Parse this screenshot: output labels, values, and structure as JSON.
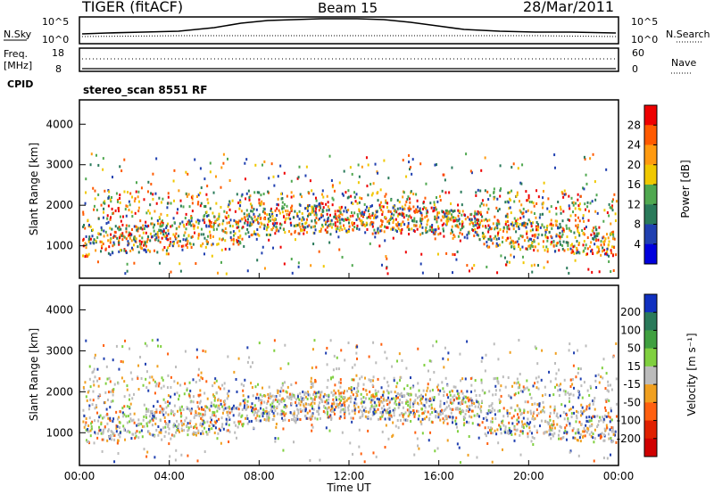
{
  "header": {
    "title": "TIGER (fitACF)",
    "beam": "Beam 15",
    "date": "28/Mar/2011"
  },
  "noise_panel": {
    "left_label": "N.Sky",
    "right_label": "N.Search",
    "left_ticks": [
      "10^5",
      "10^0"
    ],
    "right_ticks": [
      "10^5",
      "10^0"
    ]
  },
  "freq_panel": {
    "left_label_1": "Freq.",
    "left_label_2": "[MHz]",
    "left_ticks": [
      "18",
      "8"
    ],
    "right_label": "Nave",
    "right_ticks": [
      "60",
      "0"
    ]
  },
  "cpid": {
    "label": "CPID",
    "value": "stereo_scan 8551 RF"
  },
  "chart_data": [
    {
      "type": "heatmap",
      "name": "power",
      "ylabel": "Slant Range [km]",
      "ylim": [
        200,
        4600
      ],
      "yticks": [
        "1000",
        "2000",
        "3000",
        "4000"
      ],
      "colorbar_label": "Power [dB]",
      "colorbar_ticks": [
        "28",
        "24",
        "20",
        "16",
        "12",
        "8",
        "4"
      ],
      "colorbar_colors": [
        "#ee0000",
        "#ff5a00",
        "#ff9a10",
        "#f0c800",
        "#50a850",
        "#2a7a5a",
        "#2040b0",
        "#0000dd"
      ]
    },
    {
      "type": "heatmap",
      "name": "velocity",
      "ylabel": "Slant Range [km]",
      "ylim": [
        200,
        4600
      ],
      "yticks": [
        "1000",
        "2000",
        "3000",
        "4000"
      ],
      "colorbar_label": "Velocity [m s⁻¹]",
      "colorbar_ticks": [
        "200",
        "100",
        "50",
        "15",
        "-15",
        "-50",
        "-100",
        "-200"
      ],
      "colorbar_colors": [
        "#1030c0",
        "#2a7a5a",
        "#40a040",
        "#80d040",
        "#bcbcbc",
        "#f0a020",
        "#ff6010",
        "#e02000",
        "#d00000"
      ]
    }
  ],
  "xaxis": {
    "label": "Time UT",
    "ticks": [
      "00:00",
      "04:00",
      "08:00",
      "12:00",
      "16:00",
      "20:00",
      "00:00"
    ]
  }
}
